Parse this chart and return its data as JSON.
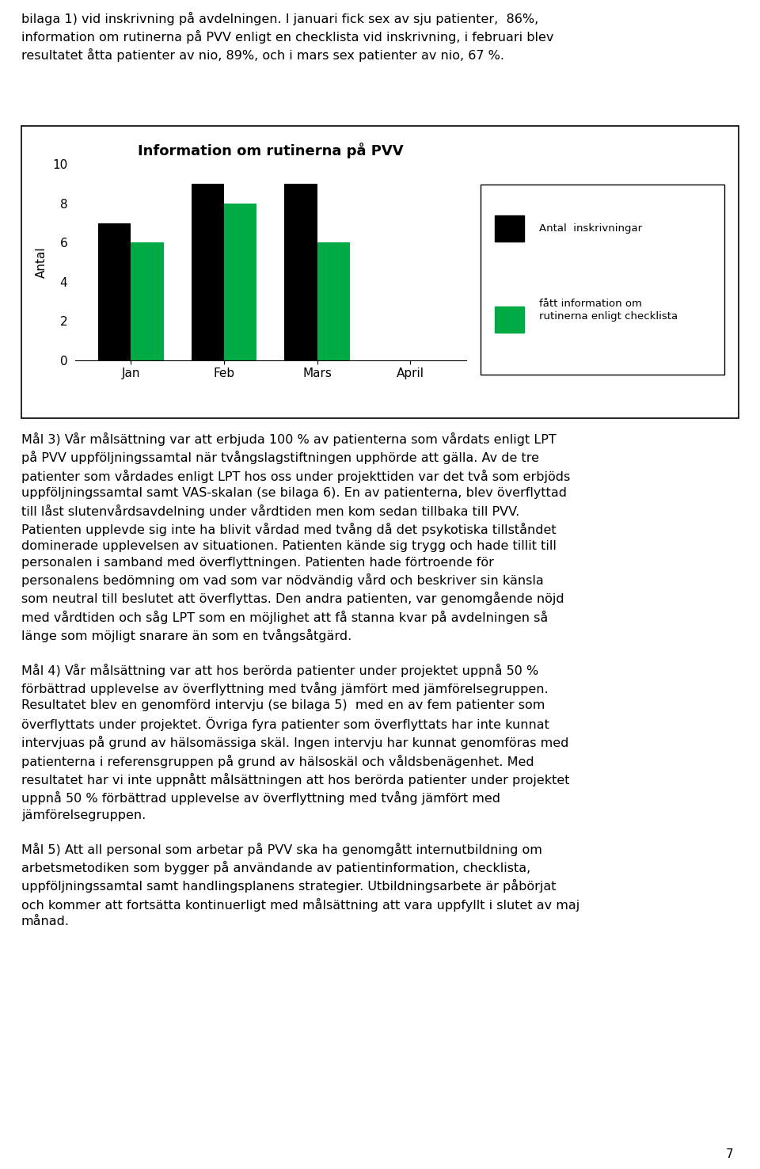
{
  "title": "Information om rutinerna på PVV",
  "ylabel": "Antal",
  "categories": [
    "Jan",
    "Feb",
    "Mars",
    "April"
  ],
  "series1_values": [
    7,
    9,
    9,
    0
  ],
  "series2_values": [
    6,
    8,
    6,
    0
  ],
  "series1_label": "Antal  inskrivningar",
  "series2_label": "fått information om\nrutinerna enligt checklista",
  "series1_color": "#000000",
  "series2_color": "#00aa44",
  "ylim": [
    0,
    10
  ],
  "yticks": [
    0,
    2,
    4,
    6,
    8,
    10
  ],
  "background_color": "#ffffff",
  "bar_width": 0.35,
  "title_fontsize": 13,
  "label_fontsize": 11,
  "tick_fontsize": 11,
  "text_block0": "bilaga 1) vid inskrivning på avdelningen. I januari fick sex av sju patienter,  86%,\ninformation om rutinerna på PVV enligt en checklista vid inskrivning, i februari blev\nresultatet åtta patienter av nio, 89%, och i mars sex patienter av nio, 67 %.",
  "text_block1": "Mål 3) Vår målsättning var att erbjuda 100 % av patienterna som vårdats enligt LPT\npå PVV uppföljningssamtal när tvångslagstiftningen upphörde att gälla. Av de tre\npatienter som vårdades enligt LPT hos oss under projekttiden var det två som erbjöds\nuppföljningssamtal samt VAS-skalan (se bilaga 6). En av patienterna, blev överflyttad\ntill låst slutenvårdsavdelning under vårdtiden men kom sedan tillbaka till PVV.\nPatienten upplevde sig inte ha blivit vårdad med tvång då det psykotiska tillståndet\ndominerade upplevelsen av situationen. Patienten kände sig trygg och hade tillit till\npersonalen i samband med överflyttningen. Patienten hade förtroende för\npersonalens bedömning om vad som var nödvändig vård och beskriver sin känsla\nsom neutral till beslutet att överflyttas. Den andra patienten, var genomgående nöjd\nmed vårdtiden och såg LPT som en möjlighet att få stanna kvar på avdelningen så\nlänge som möjligt snarare än som en tvångsåtgärd.",
  "text_block2": "Mål 4) Vår målsättning var att hos berörda patienter under projektet uppnå 50 %\nförbättrad upplevelse av överflyttning med tvång jämfört med jämförelsegruppen.\nResultatet blev en genomförd intervju (se bilaga 5)  med en av fem patienter som\növerflyttats under projektet. Övriga fyra patienter som överflyttats har inte kunnat\nintervjuas på grund av hälsomässiga skäl. Ingen intervju har kunnat genomföras med\npatienterna i referensgruppen på grund av hälsoskäl och våldsbenägenhet. Med\nresultatet har vi inte uppnått målsättningen att hos berörda patienter under projektet\nuppnå 50 % förbättrad upplevelse av överflyttning med tvång jämfört med\njämförelsegruppen.",
  "text_block3": "Mål 5) Att all personal som arbetar på PVV ska ha genomgått internutbildning om\narbetsmetodiken som bygger på användande av patientinformation, checklista,\nuppföljningssamtal samt handlingsplanens strategier. Utbildningsarbete är påbörjat\noch kommer att fortsätta kontinuerligt med målsättning att vara uppfyllt i slutet av maj\nmånad.",
  "page_number": "7"
}
